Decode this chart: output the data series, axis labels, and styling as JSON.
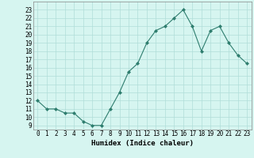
{
  "x": [
    0,
    1,
    2,
    3,
    4,
    5,
    6,
    7,
    8,
    9,
    10,
    11,
    12,
    13,
    14,
    15,
    16,
    17,
    18,
    19,
    20,
    21,
    22,
    23
  ],
  "y": [
    12,
    11,
    11,
    10.5,
    10.5,
    9.5,
    9,
    9,
    11,
    13,
    15.5,
    16.5,
    19,
    20.5,
    21,
    22,
    23,
    21,
    18,
    20.5,
    21,
    19,
    17.5,
    16.5
  ],
  "xlabel": "Humidex (Indice chaleur)",
  "ylabel": "",
  "xlim": [
    -0.5,
    23.5
  ],
  "ylim": [
    8.5,
    24
  ],
  "yticks": [
    9,
    10,
    11,
    12,
    13,
    14,
    15,
    16,
    17,
    18,
    19,
    20,
    21,
    22,
    23
  ],
  "xticks": [
    0,
    1,
    2,
    3,
    4,
    5,
    6,
    7,
    8,
    9,
    10,
    11,
    12,
    13,
    14,
    15,
    16,
    17,
    18,
    19,
    20,
    21,
    22,
    23
  ],
  "line_color": "#2e7d6e",
  "marker": "D",
  "marker_size": 2,
  "bg_color": "#d6f5f0",
  "grid_color": "#b0ddd8",
  "axis_fontsize": 6.5,
  "tick_fontsize": 5.5
}
